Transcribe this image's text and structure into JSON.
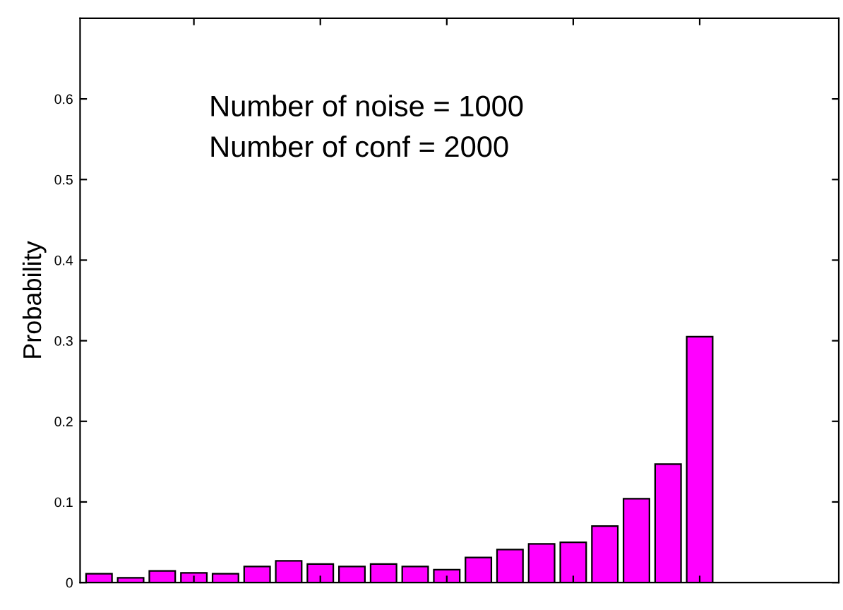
{
  "chart_data": {
    "type": "bar",
    "ylabel": "Probability",
    "annotations": [
      "Number of noise = 1000",
      "Number of conf = 2000"
    ],
    "categories": [
      null,
      null,
      null,
      null,
      null,
      null,
      null,
      null,
      null,
      null,
      null,
      null,
      null,
      null,
      null,
      null,
      null,
      null,
      null,
      null
    ],
    "values": [
      0.011,
      0.006,
      0.0145,
      0.012,
      0.011,
      0.02,
      0.027,
      0.023,
      0.02,
      0.023,
      0.02,
      0.016,
      0.031,
      0.041,
      0.048,
      0.05,
      0.07,
      0.104,
      0.147,
      0.305
    ],
    "color": "#ff00ff",
    "ylim": [
      0,
      0.7
    ],
    "yticks": [
      0,
      0.1,
      0.2,
      0.3,
      0.4,
      0.5,
      0.6
    ],
    "tick_labels": "y",
    "grid": false,
    "legend": false
  }
}
